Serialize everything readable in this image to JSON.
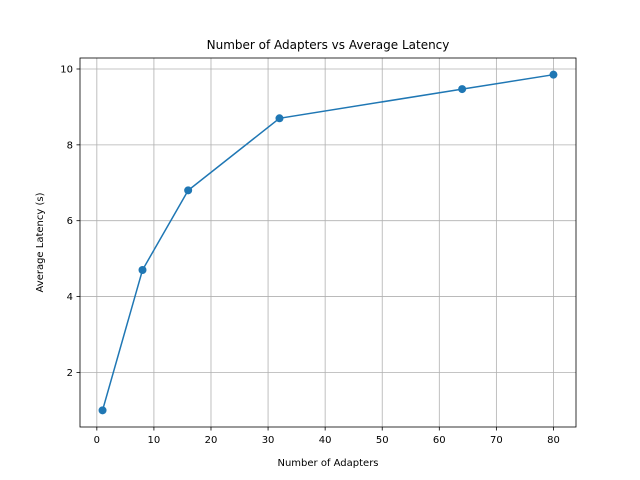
{
  "chart_data": {
    "type": "line",
    "title": "Number of Adapters vs Average Latency",
    "xlabel": "Number of Adapters",
    "ylabel": "Average Latency (s)",
    "x": [
      1,
      8,
      16,
      32,
      64,
      80
    ],
    "series": [
      {
        "values": [
          1.0,
          4.7,
          6.8,
          8.7,
          9.47,
          9.85
        ]
      }
    ],
    "xlim": [
      -2.95,
      83.95
    ],
    "ylim": [
      0.56,
      10.29
    ],
    "xticks": [
      0,
      10,
      20,
      30,
      40,
      50,
      60,
      70,
      80
    ],
    "yticks": [
      2,
      4,
      6,
      8,
      10
    ],
    "grid": true,
    "marker": "circle",
    "colors": {
      "line": "#1f77b4",
      "grid": "#b0b0b0",
      "axes": "#000000"
    }
  }
}
